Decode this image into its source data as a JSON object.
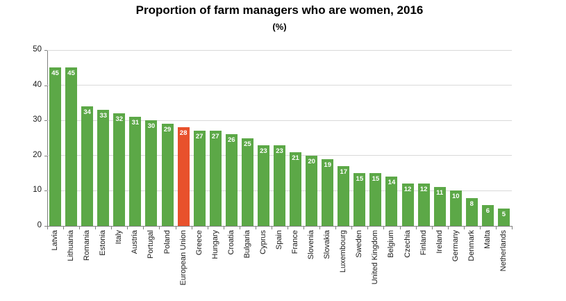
{
  "chart_data": {
    "type": "bar",
    "title": "Proportion of farm managers who are women, 2016",
    "subtitle": "(%)",
    "xlabel": "",
    "ylabel": "",
    "categories": [
      "Latvia",
      "Lithuania",
      "Romania",
      "Estonia",
      "Italy",
      "Austria",
      "Portugal",
      "Poland",
      "European Union",
      "Greece",
      "Hungary",
      "Croatia",
      "Bulgaria",
      "Cyprus",
      "Spain",
      "France",
      "Slovenia",
      "Slovakia",
      "Luxembourg",
      "Sweden",
      "United Kingdom",
      "Belgium",
      "Czechia",
      "Finland",
      "Ireland",
      "Germany",
      "Denmark",
      "Malta",
      "Netherlands"
    ],
    "values": [
      45,
      45,
      34,
      33,
      32,
      31,
      30,
      29,
      28,
      27,
      27,
      26,
      25,
      23,
      23,
      21,
      20,
      19,
      17,
      15,
      15,
      14,
      12,
      12,
      11,
      10,
      8,
      6,
      5
    ],
    "highlight_category": "European Union",
    "ylim": [
      0,
      50
    ],
    "yticks": [
      0,
      10,
      20,
      30,
      40,
      50
    ],
    "grid": true,
    "legend": false,
    "data_labels": "inside-end-white",
    "colors": {
      "bar": "#5CA847",
      "highlight_bar": "#E8512C",
      "value_label": "#FFFFFF",
      "gridline": "#D9D9D9",
      "axis": "#808080",
      "text": "#000000"
    }
  }
}
